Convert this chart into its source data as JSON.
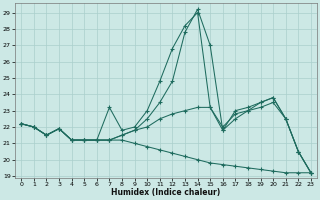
{
  "xlabel": "Humidex (Indice chaleur)",
  "bg_color": "#cce8e5",
  "grid_color": "#aacfcc",
  "line_color": "#1e6b5e",
  "xlim": [
    -0.5,
    23.5
  ],
  "ylim": [
    18.9,
    29.6
  ],
  "yticks": [
    19,
    20,
    21,
    22,
    23,
    24,
    25,
    26,
    27,
    28,
    29
  ],
  "xticks": [
    0,
    1,
    2,
    3,
    4,
    5,
    6,
    7,
    8,
    9,
    10,
    11,
    12,
    13,
    14,
    15,
    16,
    17,
    18,
    19,
    20,
    21,
    22,
    23
  ],
  "line1_y": [
    22.2,
    22.0,
    21.5,
    21.9,
    21.2,
    21.2,
    21.2,
    21.2,
    21.5,
    21.8,
    22.0,
    22.5,
    22.8,
    23.0,
    23.2,
    23.2,
    22.0,
    22.8,
    23.0,
    23.2,
    23.5,
    22.5,
    20.5,
    19.2
  ],
  "line2_y": [
    22.2,
    22.0,
    21.5,
    21.9,
    21.2,
    21.2,
    21.2,
    21.2,
    21.5,
    21.8,
    22.5,
    23.5,
    24.8,
    27.8,
    29.2,
    27.0,
    21.8,
    22.5,
    23.0,
    23.5,
    23.8,
    22.5,
    20.5,
    19.2
  ],
  "line3_y": [
    22.2,
    22.0,
    21.5,
    21.9,
    21.2,
    21.2,
    21.2,
    23.2,
    21.8,
    22.0,
    23.0,
    24.8,
    26.8,
    28.2,
    29.0,
    23.2,
    21.8,
    23.0,
    23.2,
    23.5,
    23.8,
    22.5,
    20.5,
    19.2
  ],
  "line4_y": [
    22.2,
    22.0,
    21.5,
    21.9,
    21.2,
    21.2,
    21.2,
    21.2,
    21.2,
    21.0,
    20.8,
    20.6,
    20.4,
    20.2,
    20.0,
    19.8,
    19.7,
    19.6,
    19.5,
    19.4,
    19.3,
    19.2,
    19.2,
    19.2
  ]
}
